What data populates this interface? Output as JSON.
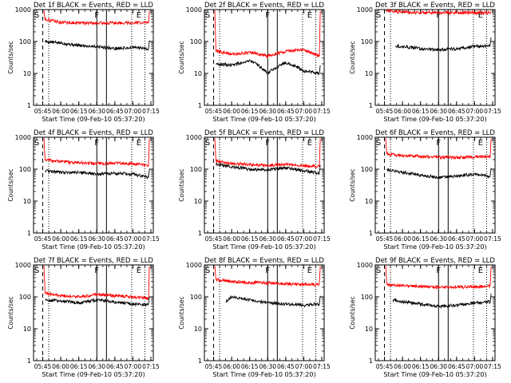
{
  "colors": {
    "events": "#000000",
    "lld": "#ff0000",
    "axes": "#000000",
    "background": "#ffffff"
  },
  "chart_data": [
    {
      "type": "line",
      "title": "Det 1f BLACK = Events, RED = LLD",
      "xlabel": "Start Time (09-Feb-10 05:37:20)",
      "ylabel": "Counts/sec",
      "yscale": "log",
      "ylim": [
        1,
        1000
      ],
      "xlim": [
        "05:37:20",
        "07:17:00"
      ],
      "x_ticks": [
        "05:45",
        "06:00",
        "06:15",
        "06:30",
        "06:45",
        "07:00",
        "07:15"
      ],
      "y_ticks": [
        "1",
        "10",
        "100",
        "1000"
      ],
      "markers": [
        {
          "label": "S",
          "time": "05:40"
        },
        {
          "label": "F",
          "time": "06:30"
        },
        {
          "label": "E",
          "time": "07:05"
        }
      ],
      "vlines": [
        {
          "time": "05:45",
          "style": "dashed"
        },
        {
          "time": "05:50",
          "style": "dotted"
        },
        {
          "time": "06:30",
          "style": "solid"
        },
        {
          "time": "06:38",
          "style": "solid"
        },
        {
          "time": "06:59",
          "style": "dotted"
        },
        {
          "time": "07:10",
          "style": "dotted"
        }
      ],
      "series": [
        {
          "name": "Events",
          "color": "#000000",
          "x": [
            "05:47",
            "06:00",
            "06:15",
            "06:30",
            "06:45",
            "07:00",
            "07:13"
          ],
          "values": [
            100,
            90,
            75,
            70,
            60,
            65,
            60
          ]
        },
        {
          "name": "LLD",
          "color": "#ff0000",
          "x": [
            "05:47",
            "06:00",
            "06:15",
            "06:30",
            "06:45",
            "07:00",
            "07:13"
          ],
          "values": [
            500,
            400,
            380,
            380,
            380,
            390,
            390
          ]
        }
      ]
    },
    {
      "type": "line",
      "title": "Det 2f BLACK = Events, RED = LLD",
      "xlabel": "Start Time (09-Feb-10 05:37:20)",
      "ylabel": "Counts/sec",
      "yscale": "log",
      "ylim": [
        1,
        1000
      ],
      "xlim": [
        "05:37:20",
        "07:17:00"
      ],
      "x_ticks": [
        "05:45",
        "06:00",
        "06:15",
        "06:30",
        "06:45",
        "07:00",
        "07:15"
      ],
      "y_ticks": [
        "1",
        "10",
        "100",
        "1000"
      ],
      "markers": [
        {
          "label": "S",
          "time": "05:40"
        },
        {
          "label": "F",
          "time": "06:30"
        },
        {
          "label": "E",
          "time": "07:05"
        }
      ],
      "vlines": [
        {
          "time": "05:45",
          "style": "dashed"
        },
        {
          "time": "05:50",
          "style": "dotted"
        },
        {
          "time": "06:30",
          "style": "solid"
        },
        {
          "time": "06:38",
          "style": "solid"
        },
        {
          "time": "06:59",
          "style": "dotted"
        },
        {
          "time": "07:10",
          "style": "dotted"
        }
      ],
      "series": [
        {
          "name": "Events",
          "color": "#000000",
          "x": [
            "05:47",
            "06:00",
            "06:15",
            "06:30",
            "06:45",
            "07:00",
            "07:13"
          ],
          "values": [
            20,
            18,
            25,
            10,
            22,
            12,
            10
          ]
        },
        {
          "name": "LLD",
          "color": "#ff0000",
          "x": [
            "05:47",
            "06:00",
            "06:15",
            "06:30",
            "06:45",
            "07:00",
            "07:13"
          ],
          "values": [
            50,
            40,
            45,
            35,
            50,
            55,
            35
          ]
        }
      ]
    },
    {
      "type": "line",
      "title": "Det 3f BLACK = Events, RED = LLD",
      "xlabel": "Start Time (09-Feb-10 05:37:20)",
      "ylabel": "Counts/sec",
      "yscale": "log",
      "ylim": [
        1,
        1000
      ],
      "xlim": [
        "05:37:20",
        "07:17:00"
      ],
      "x_ticks": [
        "05:45",
        "06:00",
        "06:15",
        "06:30",
        "06:45",
        "07:00",
        "07:15"
      ],
      "y_ticks": [
        "1",
        "10",
        "100",
        "1000"
      ],
      "markers": [
        {
          "label": "S",
          "time": "05:40"
        },
        {
          "label": "F",
          "time": "06:30"
        },
        {
          "label": "E",
          "time": "07:05"
        }
      ],
      "vlines": [
        {
          "time": "05:45",
          "style": "dashed"
        },
        {
          "time": "05:50",
          "style": "dotted"
        },
        {
          "time": "06:30",
          "style": "solid"
        },
        {
          "time": "06:38",
          "style": "solid"
        },
        {
          "time": "06:59",
          "style": "dotted"
        },
        {
          "time": "07:10",
          "style": "dotted"
        }
      ],
      "series": [
        {
          "name": "Events",
          "color": "#000000",
          "x": [
            "05:54",
            "06:00",
            "06:15",
            "06:30",
            "06:45",
            "07:00",
            "07:13"
          ],
          "values": [
            75,
            70,
            60,
            55,
            60,
            70,
            75
          ]
        },
        {
          "name": "LLD",
          "color": "#ff0000",
          "x": [
            "05:47",
            "06:00",
            "06:15",
            "06:30",
            "06:45",
            "07:00",
            "07:13"
          ],
          "values": [
            900,
            850,
            800,
            800,
            800,
            800,
            800
          ]
        }
      ]
    },
    {
      "type": "line",
      "title": "Det 4f BLACK = Events, RED = LLD",
      "xlabel": "Start Time (09-Feb-10 05:37:20)",
      "ylabel": "Counts/sec",
      "yscale": "log",
      "ylim": [
        1,
        1000
      ],
      "xlim": [
        "05:37:20",
        "07:17:00"
      ],
      "x_ticks": [
        "05:45",
        "06:00",
        "06:15",
        "06:30",
        "06:45",
        "07:00",
        "07:15"
      ],
      "y_ticks": [
        "1",
        "10",
        "100",
        "1000"
      ],
      "markers": [
        {
          "label": "S",
          "time": "05:40"
        },
        {
          "label": "F",
          "time": "06:30"
        },
        {
          "label": "E",
          "time": "07:05"
        }
      ],
      "vlines": [
        {
          "time": "05:45",
          "style": "dashed"
        },
        {
          "time": "05:50",
          "style": "dotted"
        },
        {
          "time": "06:30",
          "style": "solid"
        },
        {
          "time": "06:38",
          "style": "solid"
        },
        {
          "time": "06:59",
          "style": "dotted"
        },
        {
          "time": "07:10",
          "style": "dotted"
        }
      ],
      "series": [
        {
          "name": "Events",
          "color": "#000000",
          "x": [
            "05:47",
            "06:00",
            "06:15",
            "06:30",
            "06:45",
            "07:00",
            "07:13"
          ],
          "values": [
            90,
            80,
            80,
            70,
            75,
            70,
            55
          ]
        },
        {
          "name": "LLD",
          "color": "#ff0000",
          "x": [
            "05:47",
            "06:00",
            "06:15",
            "06:30",
            "06:45",
            "07:00",
            "07:13"
          ],
          "values": [
            200,
            170,
            160,
            150,
            155,
            150,
            130
          ]
        }
      ]
    },
    {
      "type": "line",
      "title": "Det 5f BLACK = Events, RED = LLD",
      "xlabel": "Start Time (09-Feb-10 05:37:20)",
      "ylabel": "Counts/sec",
      "yscale": "log",
      "ylim": [
        1,
        1000
      ],
      "xlim": [
        "05:37:20",
        "07:17:00"
      ],
      "x_ticks": [
        "05:45",
        "06:00",
        "06:15",
        "06:30",
        "06:45",
        "07:00",
        "07:15"
      ],
      "y_ticks": [
        "1",
        "10",
        "100",
        "1000"
      ],
      "markers": [
        {
          "label": "S",
          "time": "05:40"
        },
        {
          "label": "F",
          "time": "06:30"
        },
        {
          "label": "E",
          "time": "07:05"
        }
      ],
      "vlines": [
        {
          "time": "05:45",
          "style": "dashed"
        },
        {
          "time": "05:50",
          "style": "dotted"
        },
        {
          "time": "06:30",
          "style": "solid"
        },
        {
          "time": "06:38",
          "style": "solid"
        },
        {
          "time": "06:59",
          "style": "dotted"
        },
        {
          "time": "07:10",
          "style": "dotted"
        }
      ],
      "series": [
        {
          "name": "Events",
          "color": "#000000",
          "x": [
            "05:47",
            "06:00",
            "06:15",
            "06:30",
            "06:45",
            "07:00",
            "07:13"
          ],
          "values": [
            140,
            120,
            100,
            95,
            110,
            90,
            75
          ]
        },
        {
          "name": "LLD",
          "color": "#ff0000",
          "x": [
            "05:47",
            "06:00",
            "06:15",
            "06:30",
            "06:45",
            "07:00",
            "07:13"
          ],
          "values": [
            180,
            150,
            140,
            130,
            140,
            130,
            120
          ]
        }
      ]
    },
    {
      "type": "line",
      "title": "Det 6f BLACK = Events, RED = LLD",
      "xlabel": "Start Time (09-Feb-10 05:37:20)",
      "ylabel": "Counts/sec",
      "yscale": "log",
      "ylim": [
        1,
        1000
      ],
      "xlim": [
        "05:37:20",
        "07:17:00"
      ],
      "x_ticks": [
        "05:45",
        "06:00",
        "06:15",
        "06:30",
        "06:45",
        "07:00",
        "07:15"
      ],
      "y_ticks": [
        "1",
        "10",
        "100",
        "1000"
      ],
      "markers": [
        {
          "label": "S",
          "time": "05:40"
        },
        {
          "label": "F",
          "time": "06:30"
        },
        {
          "label": "E",
          "time": "07:05"
        }
      ],
      "vlines": [
        {
          "time": "05:45",
          "style": "dashed"
        },
        {
          "time": "05:50",
          "style": "dotted"
        },
        {
          "time": "06:30",
          "style": "solid"
        },
        {
          "time": "06:38",
          "style": "solid"
        },
        {
          "time": "06:59",
          "style": "dotted"
        },
        {
          "time": "07:10",
          "style": "dotted"
        }
      ],
      "series": [
        {
          "name": "Events",
          "color": "#000000",
          "x": [
            "05:47",
            "06:00",
            "06:15",
            "06:30",
            "06:45",
            "07:00",
            "07:13"
          ],
          "values": [
            95,
            80,
            65,
            55,
            60,
            70,
            60
          ]
        },
        {
          "name": "LLD",
          "color": "#ff0000",
          "x": [
            "05:47",
            "06:00",
            "06:15",
            "06:30",
            "06:45",
            "07:00",
            "07:13"
          ],
          "values": [
            300,
            260,
            250,
            240,
            230,
            240,
            250
          ]
        }
      ]
    },
    {
      "type": "line",
      "title": "Det 7f BLACK = Events, RED = LLD",
      "xlabel": "Start Time (09-Feb-10 05:37:20)",
      "ylabel": "Counts/sec",
      "yscale": "log",
      "ylim": [
        1,
        1000
      ],
      "xlim": [
        "05:37:20",
        "07:17:00"
      ],
      "x_ticks": [
        "05:45",
        "06:00",
        "06:15",
        "06:30",
        "06:45",
        "07:00",
        "07:15"
      ],
      "y_ticks": [
        "1",
        "10",
        "100",
        "1000"
      ],
      "markers": [
        {
          "label": "S",
          "time": "05:40"
        },
        {
          "label": "F",
          "time": "06:30"
        },
        {
          "label": "E",
          "time": "07:05"
        }
      ],
      "vlines": [
        {
          "time": "05:45",
          "style": "dashed"
        },
        {
          "time": "05:50",
          "style": "dotted"
        },
        {
          "time": "06:30",
          "style": "solid"
        },
        {
          "time": "06:38",
          "style": "solid"
        },
        {
          "time": "06:59",
          "style": "dotted"
        },
        {
          "time": "07:10",
          "style": "dotted"
        }
      ],
      "series": [
        {
          "name": "Events",
          "color": "#000000",
          "x": [
            "05:47",
            "06:00",
            "06:15",
            "06:30",
            "06:45",
            "07:00",
            "07:13"
          ],
          "values": [
            80,
            75,
            65,
            80,
            70,
            60,
            55
          ]
        },
        {
          "name": "LLD",
          "color": "#ff0000",
          "x": [
            "05:47",
            "06:00",
            "06:15",
            "06:30",
            "06:45",
            "07:00",
            "07:13"
          ],
          "values": [
            130,
            110,
            100,
            120,
            110,
            100,
            90
          ]
        }
      ]
    },
    {
      "type": "line",
      "title": "Det 8f BLACK = Events, RED = LLD",
      "xlabel": "Start Time (09-Feb-10 05:37:20)",
      "ylabel": "Counts/sec",
      "yscale": "log",
      "ylim": [
        1,
        1000
      ],
      "xlim": [
        "05:37:20",
        "07:17:00"
      ],
      "x_ticks": [
        "05:45",
        "06:00",
        "06:15",
        "06:30",
        "06:45",
        "07:00",
        "07:15"
      ],
      "y_ticks": [
        "1",
        "10",
        "100",
        "1000"
      ],
      "markers": [
        {
          "label": "S",
          "time": "05:40"
        },
        {
          "label": "F",
          "time": "06:30"
        },
        {
          "label": "E",
          "time": "07:05"
        }
      ],
      "vlines": [
        {
          "time": "05:45",
          "style": "dashed"
        },
        {
          "time": "05:50",
          "style": "dotted"
        },
        {
          "time": "06:30",
          "style": "solid"
        },
        {
          "time": "06:38",
          "style": "solid"
        },
        {
          "time": "06:59",
          "style": "dotted"
        },
        {
          "time": "07:10",
          "style": "dotted"
        }
      ],
      "series": [
        {
          "name": "Events",
          "color": "#000000",
          "x": [
            "05:55",
            "06:00",
            "06:15",
            "06:30",
            "06:45",
            "07:00",
            "07:13"
          ],
          "values": [
            70,
            100,
            80,
            65,
            60,
            55,
            60
          ]
        },
        {
          "name": "LLD",
          "color": "#ff0000",
          "x": [
            "05:47",
            "06:00",
            "06:15",
            "06:30",
            "06:45",
            "07:00",
            "07:13"
          ],
          "values": [
            350,
            300,
            280,
            270,
            260,
            250,
            240
          ]
        }
      ]
    },
    {
      "type": "line",
      "title": "Det 9f BLACK = Events, RED = LLD",
      "xlabel": "Start Time (09-Feb-10 05:37:20)",
      "ylabel": "Counts/sec",
      "yscale": "log",
      "ylim": [
        1,
        1000
      ],
      "xlim": [
        "05:37:20",
        "07:17:00"
      ],
      "x_ticks": [
        "05:45",
        "06:00",
        "06:15",
        "06:30",
        "06:45",
        "07:00",
        "07:15"
      ],
      "y_ticks": [
        "1",
        "10",
        "100",
        "1000"
      ],
      "markers": [
        {
          "label": "S",
          "time": "05:40"
        },
        {
          "label": "F",
          "time": "06:30"
        },
        {
          "label": "E",
          "time": "07:05"
        }
      ],
      "vlines": [
        {
          "time": "05:45",
          "style": "dashed"
        },
        {
          "time": "05:50",
          "style": "dotted"
        },
        {
          "time": "06:30",
          "style": "solid"
        },
        {
          "time": "06:38",
          "style": "solid"
        },
        {
          "time": "06:59",
          "style": "dotted"
        },
        {
          "time": "07:10",
          "style": "dotted"
        }
      ],
      "series": [
        {
          "name": "Events",
          "color": "#000000",
          "x": [
            "05:52",
            "06:00",
            "06:15",
            "06:30",
            "06:45",
            "07:00",
            "07:13"
          ],
          "values": [
            80,
            70,
            60,
            50,
            55,
            65,
            70
          ]
        },
        {
          "name": "LLD",
          "color": "#ff0000",
          "x": [
            "05:47",
            "06:00",
            "06:15",
            "06:30",
            "06:45",
            "07:00",
            "07:13"
          ],
          "values": [
            250,
            220,
            210,
            200,
            200,
            210,
            220
          ]
        }
      ]
    }
  ]
}
